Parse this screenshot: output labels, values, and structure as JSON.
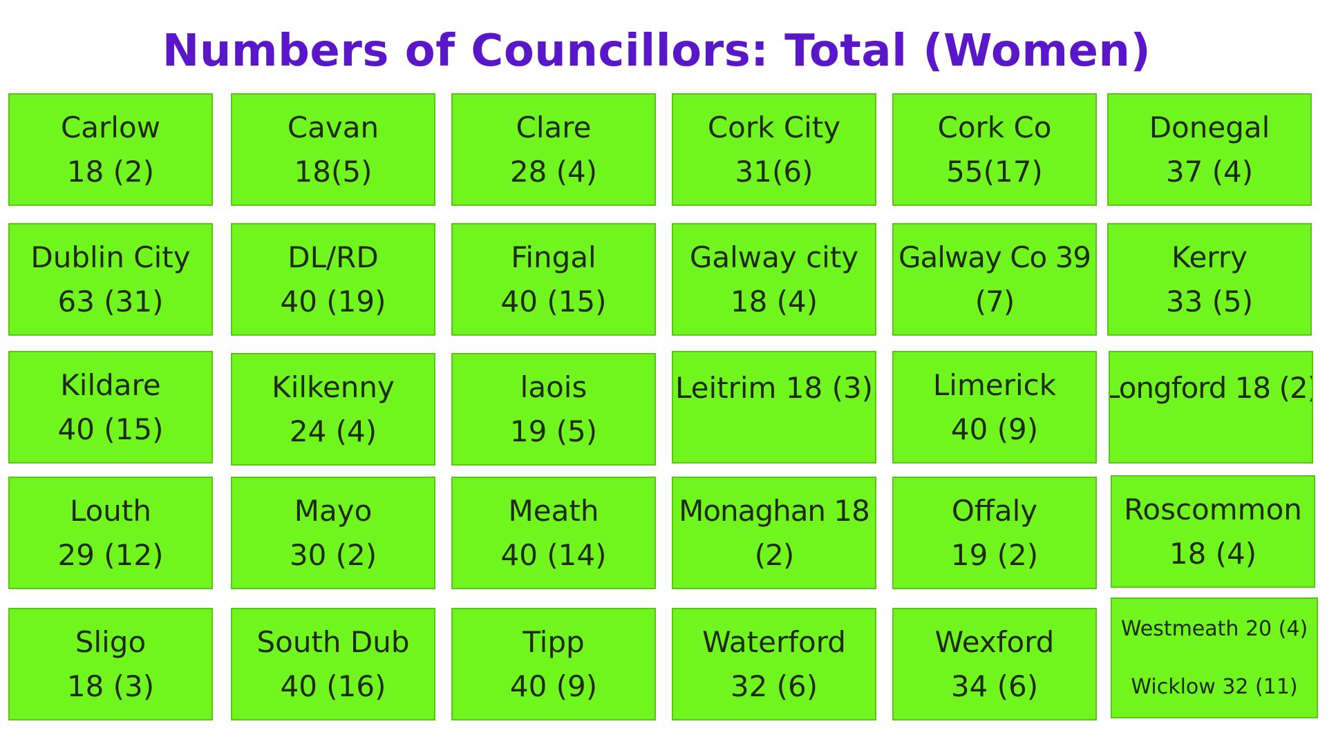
{
  "title": "Numbers of Councillors:  Total (Women)",
  "accent_color": "#5a17c9",
  "tile_color": "#71f51e",
  "tiles": [
    {
      "line1": "Carlow",
      "line2": "18 (2)"
    },
    {
      "line1": "Cavan",
      "line2": "18(5)"
    },
    {
      "line1": "Clare",
      "line2": "28 (4)"
    },
    {
      "line1": "Cork City",
      "line2": "31(6)"
    },
    {
      "line1": "Cork Co",
      "line2": "55(17)"
    },
    {
      "line1": "Donegal",
      "line2": "37 (4)"
    },
    {
      "line1": "Dublin City",
      "line2": "63 (31)"
    },
    {
      "line1": "DL/RD",
      "line2": "40 (19)"
    },
    {
      "line1": "Fingal",
      "line2": "40 (15)"
    },
    {
      "line1": "Galway city",
      "line2": "18 (4)"
    },
    {
      "line1": "Galway Co 39",
      "line2": "(7)"
    },
    {
      "line1": "Kerry",
      "line2": "33 (5)"
    },
    {
      "line1": "Kildare",
      "line2": "40 (15)"
    },
    {
      "line1": "Kilkenny",
      "line2": "24 (4)"
    },
    {
      "line1": "laois",
      "line2": "19 (5)"
    },
    {
      "line1": "Leitrim 18 (3)",
      "line2": ""
    },
    {
      "line1": "Limerick",
      "line2": "40 (9)"
    },
    {
      "line1": "Longford 18 (2)",
      "line2": ""
    },
    {
      "line1": "Louth",
      "line2": "29 (12)"
    },
    {
      "line1": "Mayo",
      "line2": "30 (2)"
    },
    {
      "line1": "Meath",
      "line2": "40 (14)"
    },
    {
      "line1": "Monaghan 18",
      "line2": "(2)"
    },
    {
      "line1": "Offaly",
      "line2": "19 (2)"
    },
    {
      "line1": "Roscommon",
      "line2": "18 (4)"
    },
    {
      "line1": "Sligo",
      "line2": "18 (3)"
    },
    {
      "line1": "South Dub",
      "line2": "40 (16)"
    },
    {
      "line1": "Tipp",
      "line2": "40 (9)"
    },
    {
      "line1": "Waterford",
      "line2": "32 (6)"
    },
    {
      "line1": "Wexford",
      "line2": "34 (6)"
    },
    {
      "line1": "Westmeath 20 (4)",
      "line2": "Wicklow 32 (11)"
    }
  ]
}
